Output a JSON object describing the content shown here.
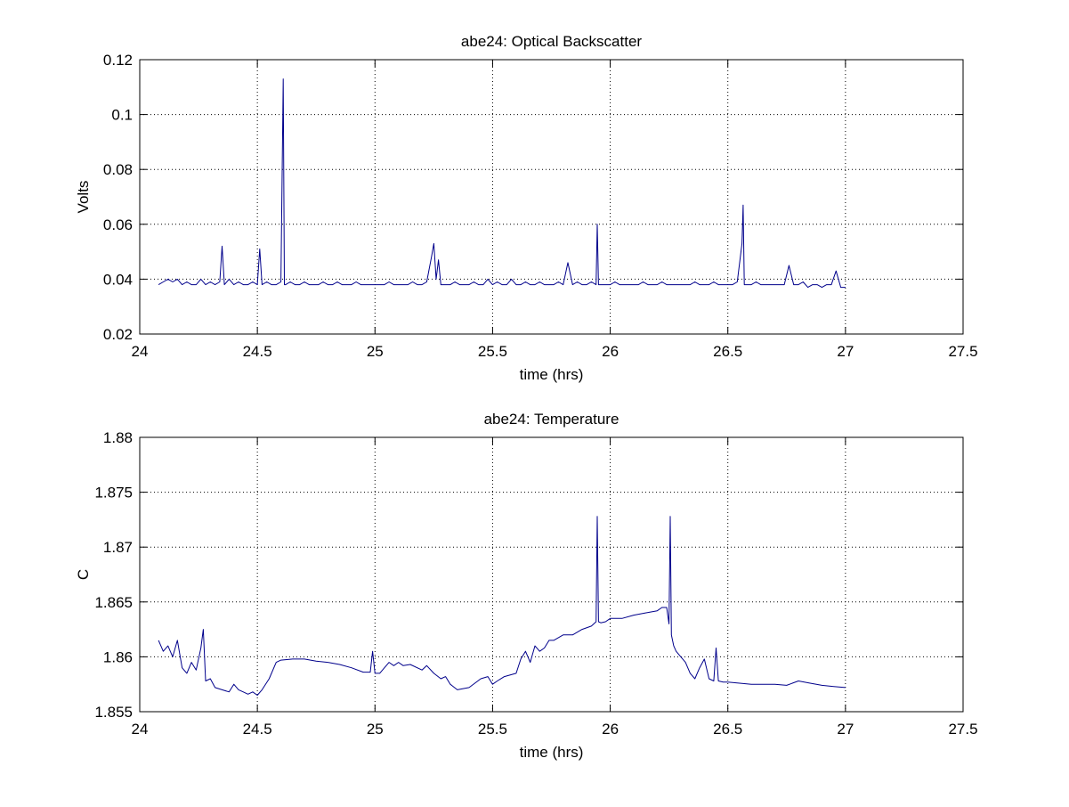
{
  "figure": {
    "background": "#ffffff",
    "line_color": "#00008b",
    "grid_style": "dotted"
  },
  "chart_data": [
    {
      "type": "line",
      "title": "abe24: Optical Backscatter",
      "xlabel": "time (hrs)",
      "ylabel": "Volts",
      "xlim": [
        24,
        27.5
      ],
      "ylim": [
        0.02,
        0.12
      ],
      "xticks": [
        24,
        24.5,
        25,
        25.5,
        26,
        26.5,
        27,
        27.5
      ],
      "xtick_labels": [
        "24",
        "24.5",
        "25",
        "25.5",
        "26",
        "26.5",
        "27",
        "27.5"
      ],
      "yticks": [
        0.02,
        0.04,
        0.06,
        0.08,
        0.1,
        0.12
      ],
      "ytick_labels": [
        "0.02",
        "0.04",
        "0.06",
        "0.08",
        "0.1",
        "0.12"
      ],
      "grid": true,
      "series": [
        {
          "color": "#00008b",
          "x": [
            24.08,
            24.1,
            24.12,
            24.14,
            24.16,
            24.18,
            24.2,
            24.22,
            24.24,
            24.26,
            24.28,
            24.3,
            24.32,
            24.34,
            24.35,
            24.36,
            24.38,
            24.4,
            24.42,
            24.44,
            24.46,
            24.48,
            24.5,
            24.51,
            24.52,
            24.54,
            24.56,
            24.58,
            24.6,
            24.605,
            24.61,
            24.615,
            24.62,
            24.64,
            24.66,
            24.68,
            24.7,
            24.72,
            24.74,
            24.76,
            24.78,
            24.8,
            24.82,
            24.84,
            24.86,
            24.88,
            24.9,
            24.92,
            24.94,
            24.96,
            24.98,
            25.0,
            25.02,
            25.04,
            25.06,
            25.08,
            25.1,
            25.12,
            25.14,
            25.16,
            25.18,
            25.2,
            25.22,
            25.24,
            25.25,
            25.26,
            25.27,
            25.28,
            25.3,
            25.32,
            25.34,
            25.36,
            25.38,
            25.4,
            25.42,
            25.44,
            25.46,
            25.48,
            25.5,
            25.52,
            25.54,
            25.56,
            25.58,
            25.6,
            25.62,
            25.64,
            25.66,
            25.68,
            25.7,
            25.72,
            25.74,
            25.76,
            25.78,
            25.8,
            25.82,
            25.84,
            25.86,
            25.88,
            25.9,
            25.92,
            25.94,
            25.945,
            25.95,
            25.96,
            25.98,
            26.0,
            26.02,
            26.04,
            26.06,
            26.08,
            26.1,
            26.12,
            26.14,
            26.16,
            26.18,
            26.2,
            26.22,
            26.24,
            26.26,
            26.28,
            26.3,
            26.32,
            26.34,
            26.36,
            26.38,
            26.4,
            26.42,
            26.44,
            26.46,
            26.48,
            26.5,
            26.52,
            26.54,
            26.56,
            26.565,
            26.57,
            26.58,
            26.6,
            26.62,
            26.64,
            26.66,
            26.68,
            26.7,
            26.72,
            26.74,
            26.76,
            26.78,
            26.8,
            26.82,
            26.84,
            26.86,
            26.88,
            26.9,
            26.92,
            26.94,
            26.96,
            26.98,
            27.0
          ],
          "y": [
            0.038,
            0.039,
            0.04,
            0.039,
            0.04,
            0.038,
            0.039,
            0.038,
            0.038,
            0.04,
            0.038,
            0.039,
            0.038,
            0.039,
            0.052,
            0.038,
            0.04,
            0.038,
            0.039,
            0.038,
            0.038,
            0.039,
            0.038,
            0.051,
            0.038,
            0.039,
            0.038,
            0.038,
            0.039,
            0.076,
            0.113,
            0.038,
            0.038,
            0.039,
            0.038,
            0.038,
            0.039,
            0.038,
            0.038,
            0.038,
            0.039,
            0.038,
            0.038,
            0.039,
            0.038,
            0.038,
            0.038,
            0.039,
            0.038,
            0.038,
            0.038,
            0.038,
            0.038,
            0.038,
            0.039,
            0.038,
            0.038,
            0.038,
            0.038,
            0.039,
            0.038,
            0.038,
            0.039,
            0.048,
            0.053,
            0.04,
            0.047,
            0.038,
            0.038,
            0.038,
            0.039,
            0.038,
            0.038,
            0.038,
            0.039,
            0.038,
            0.038,
            0.04,
            0.038,
            0.039,
            0.038,
            0.038,
            0.04,
            0.038,
            0.038,
            0.039,
            0.038,
            0.038,
            0.039,
            0.038,
            0.038,
            0.038,
            0.039,
            0.038,
            0.046,
            0.038,
            0.039,
            0.038,
            0.038,
            0.039,
            0.038,
            0.06,
            0.038,
            0.038,
            0.038,
            0.038,
            0.039,
            0.038,
            0.038,
            0.038,
            0.038,
            0.038,
            0.039,
            0.038,
            0.038,
            0.038,
            0.039,
            0.038,
            0.038,
            0.038,
            0.038,
            0.038,
            0.038,
            0.039,
            0.038,
            0.038,
            0.038,
            0.039,
            0.038,
            0.038,
            0.038,
            0.038,
            0.039,
            0.053,
            0.067,
            0.038,
            0.038,
            0.038,
            0.039,
            0.038,
            0.038,
            0.038,
            0.038,
            0.038,
            0.038,
            0.045,
            0.038,
            0.038,
            0.039,
            0.037,
            0.038,
            0.038,
            0.037,
            0.038,
            0.038,
            0.043,
            0.037,
            0.037
          ]
        }
      ]
    },
    {
      "type": "line",
      "title": "abe24: Temperature",
      "xlabel": "time (hrs)",
      "ylabel": "C",
      "xlim": [
        24,
        27.5
      ],
      "ylim": [
        1.855,
        1.88
      ],
      "xticks": [
        24,
        24.5,
        25,
        25.5,
        26,
        26.5,
        27,
        27.5
      ],
      "xtick_labels": [
        "24",
        "24.5",
        "25",
        "25.5",
        "26",
        "26.5",
        "27",
        "27.5"
      ],
      "yticks": [
        1.855,
        1.86,
        1.865,
        1.87,
        1.875,
        1.88
      ],
      "ytick_labels": [
        "1.855",
        "1.86",
        "1.865",
        "1.87",
        "1.875",
        "1.88"
      ],
      "grid": true,
      "series": [
        {
          "color": "#00008b",
          "x": [
            24.08,
            24.1,
            24.12,
            24.14,
            24.16,
            24.18,
            24.2,
            24.22,
            24.24,
            24.26,
            24.27,
            24.28,
            24.3,
            24.32,
            24.35,
            24.38,
            24.4,
            24.42,
            24.44,
            24.46,
            24.48,
            24.5,
            24.52,
            24.55,
            24.58,
            24.6,
            24.65,
            24.7,
            24.75,
            24.8,
            24.85,
            24.9,
            24.95,
            24.98,
            24.99,
            25.0,
            25.02,
            25.04,
            25.06,
            25.08,
            25.1,
            25.12,
            25.15,
            25.2,
            25.22,
            25.25,
            25.28,
            25.3,
            25.32,
            25.35,
            25.4,
            25.45,
            25.48,
            25.5,
            25.52,
            25.55,
            25.6,
            25.62,
            25.64,
            25.66,
            25.68,
            25.7,
            25.72,
            25.74,
            25.76,
            25.8,
            25.84,
            25.88,
            25.92,
            25.94,
            25.945,
            25.95,
            25.96,
            25.98,
            26.0,
            26.05,
            26.1,
            26.15,
            26.2,
            26.22,
            26.24,
            26.25,
            26.255,
            26.26,
            26.27,
            26.28,
            26.3,
            26.32,
            26.34,
            26.36,
            26.38,
            26.4,
            26.42,
            26.44,
            26.45,
            26.46,
            26.48,
            26.5,
            26.55,
            26.6,
            26.65,
            26.7,
            26.75,
            26.8,
            26.85,
            26.9,
            26.95,
            27.0
          ],
          "y": [
            1.8615,
            1.8605,
            1.861,
            1.86,
            1.8615,
            1.859,
            1.8585,
            1.8595,
            1.8588,
            1.8608,
            1.8625,
            1.8578,
            1.858,
            1.8572,
            1.857,
            1.8568,
            1.8575,
            1.857,
            1.8568,
            1.8566,
            1.8568,
            1.8565,
            1.857,
            1.858,
            1.8595,
            1.8597,
            1.8598,
            1.8598,
            1.8596,
            1.8595,
            1.8593,
            1.859,
            1.8586,
            1.8586,
            1.8605,
            1.8585,
            1.8585,
            1.859,
            1.8595,
            1.8592,
            1.8595,
            1.8592,
            1.8593,
            1.8588,
            1.8592,
            1.8585,
            1.858,
            1.8582,
            1.8575,
            1.857,
            1.8572,
            1.858,
            1.8582,
            1.8575,
            1.8578,
            1.8582,
            1.8585,
            1.8598,
            1.8605,
            1.8595,
            1.861,
            1.8605,
            1.8608,
            1.8615,
            1.8615,
            1.862,
            1.862,
            1.8625,
            1.8628,
            1.8632,
            1.8728,
            1.8632,
            1.8631,
            1.8632,
            1.8635,
            1.8635,
            1.8638,
            1.864,
            1.8642,
            1.8645,
            1.8645,
            1.863,
            1.8728,
            1.862,
            1.861,
            1.8605,
            1.86,
            1.8595,
            1.8585,
            1.858,
            1.859,
            1.8598,
            1.858,
            1.8578,
            1.8608,
            1.8578,
            1.8577,
            1.8577,
            1.8576,
            1.8575,
            1.8575,
            1.8575,
            1.8574,
            1.8578,
            1.8576,
            1.8574,
            1.8573,
            1.8572
          ]
        }
      ]
    }
  ]
}
